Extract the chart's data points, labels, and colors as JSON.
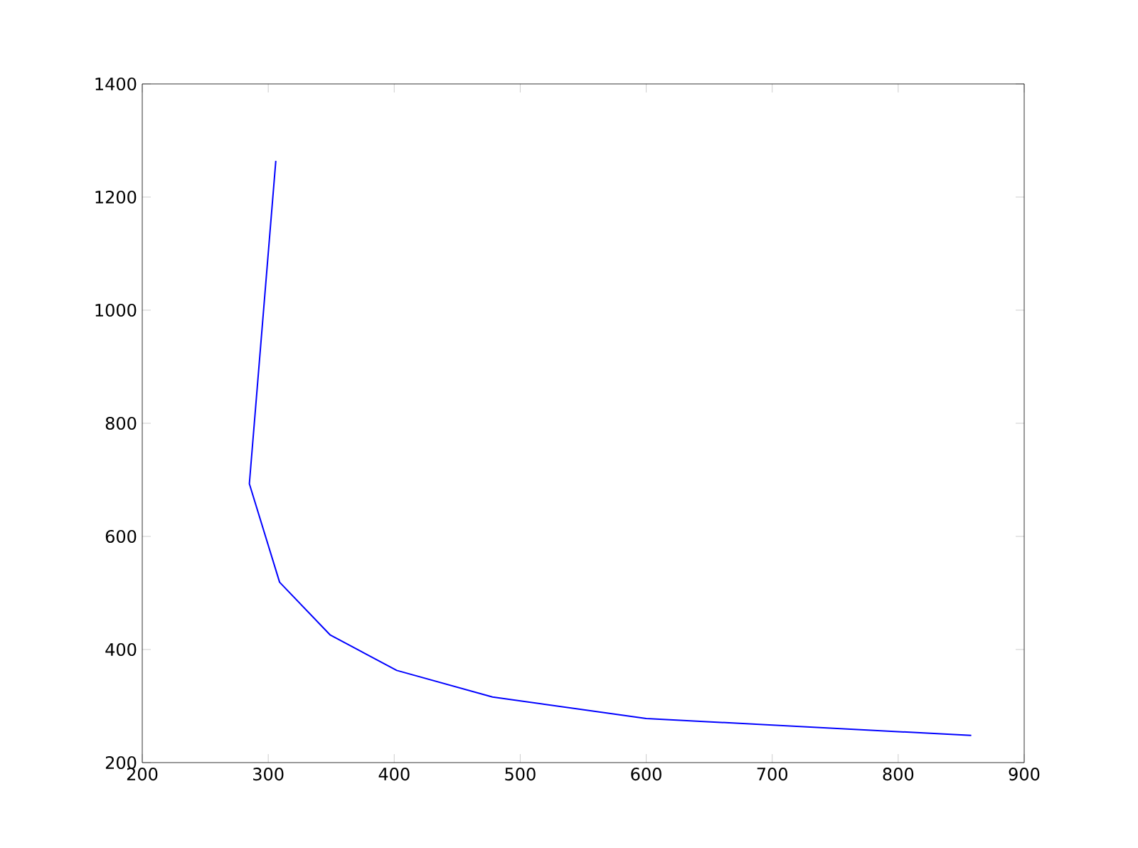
{
  "chart_data": {
    "type": "line",
    "x": [
      306,
      285,
      309,
      349,
      402,
      478,
      600,
      858
    ],
    "series": [
      {
        "color": "#0000ff",
        "values": [
          1264,
          693,
          519,
          426,
          363,
          316,
          278,
          248
        ]
      }
    ],
    "xlim": [
      200,
      900
    ],
    "xticks": [
      200,
      300,
      400,
      500,
      600,
      700,
      800,
      900
    ],
    "ylim": [
      200,
      1400
    ],
    "yticks": [
      200,
      400,
      600,
      800,
      1000,
      1200,
      1400
    ],
    "grid": false,
    "marker": "none",
    "line_style": "solid"
  }
}
